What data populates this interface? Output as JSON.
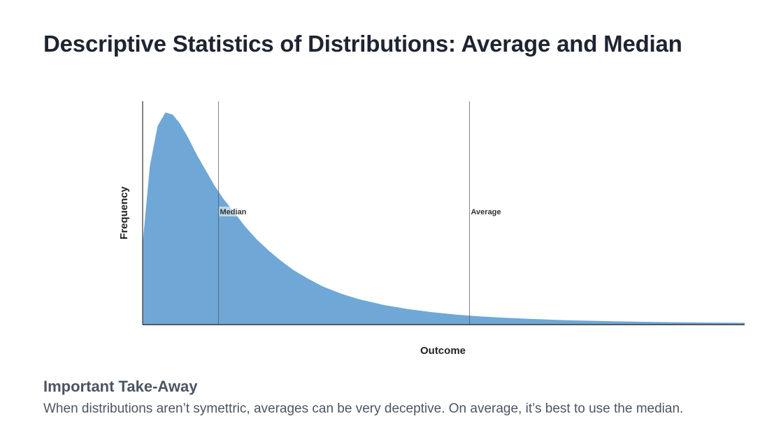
{
  "page": {
    "title": "Descriptive Statistics of Distributions: Average and Median"
  },
  "takeaway": {
    "heading": "Important Take-Away",
    "text": "When distributions aren’t symettric, averages can be very deceptive. On average, it’s best to use the median."
  },
  "chart_data": {
    "type": "area",
    "title": "",
    "xlabel": "Outcome",
    "ylabel": "Frequency",
    "xlim": [
      0,
      100
    ],
    "ylim": [
      0,
      1
    ],
    "grid": false,
    "show_tick_labels": false,
    "fill_color": "#6fa8d6",
    "series": [
      {
        "x": [
          0,
          1.2,
          2.5,
          3.8,
          5,
          6.2,
          7.5,
          9,
          10.5,
          12,
          13.5,
          15,
          17,
          19,
          21,
          23,
          25,
          27.5,
          30,
          33,
          36,
          40,
          44,
          48,
          52,
          56,
          60,
          65,
          70,
          75,
          80,
          85,
          90,
          95,
          100
        ],
        "y": [
          0.36,
          0.71,
          0.89,
          0.95,
          0.94,
          0.9,
          0.84,
          0.76,
          0.69,
          0.62,
          0.56,
          0.51,
          0.44,
          0.38,
          0.33,
          0.285,
          0.245,
          0.205,
          0.17,
          0.138,
          0.113,
          0.088,
          0.07,
          0.056,
          0.045,
          0.037,
          0.031,
          0.025,
          0.02,
          0.017,
          0.014,
          0.012,
          0.01,
          0.009,
          0.008
        ]
      }
    ],
    "reference_lines": [
      {
        "label": "Median",
        "x": 12.6
      },
      {
        "label": "Average",
        "x": 54.3
      }
    ]
  }
}
